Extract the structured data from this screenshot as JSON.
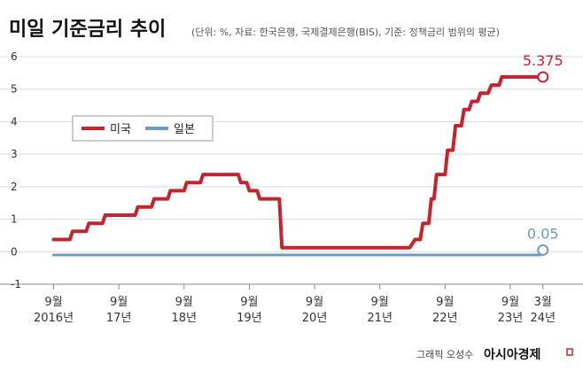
{
  "title": "미일 기준금리 추이",
  "subtitle": "(단위: %, 자료: 한국은행, 국제결제은행(BIS), 기준: 정책금리 범위의 평균)",
  "credit": {
    "author": "그래픽 오성수",
    "brand": "아시아경제"
  },
  "colors": {
    "us": "#c8232c",
    "japan": "#6b9ac4",
    "grid": "#d9d9d9",
    "axis": "#888888"
  },
  "chart_data": {
    "type": "line",
    "ylim": [
      -1,
      6
    ],
    "yticks": [
      "-1",
      "0",
      "1",
      "2",
      "3",
      "4",
      "5",
      "6"
    ],
    "xlim": [
      2016.5,
      2024.35
    ],
    "xticks": [
      {
        "line1": "9월",
        "line2": "2016년",
        "x": 2016.67
      },
      {
        "line1": "9월",
        "line2": "17년",
        "x": 2017.67
      },
      {
        "line1": "9월",
        "line2": "18년",
        "x": 2018.67
      },
      {
        "line1": "9월",
        "line2": "19년",
        "x": 2019.67
      },
      {
        "line1": "9월",
        "line2": "20년",
        "x": 2020.67
      },
      {
        "line1": "9월",
        "line2": "21년",
        "x": 2021.67
      },
      {
        "line1": "9월",
        "line2": "22년",
        "x": 2022.67
      },
      {
        "line1": "9월",
        "line2": "23년",
        "x": 2023.67
      },
      {
        "line1": "3월",
        "line2": "24년",
        "x": 2024.17
      }
    ],
    "legend": [
      {
        "name": "미국",
        "color": "#c8232c"
      },
      {
        "name": "일본",
        "color": "#6b9ac4"
      }
    ],
    "series": [
      {
        "name": "미국",
        "color": "#c8232c",
        "end_label": "5.375",
        "points": [
          [
            2016.67,
            0.375
          ],
          [
            2016.92,
            0.375
          ],
          [
            2016.96,
            0.625
          ],
          [
            2017.17,
            0.625
          ],
          [
            2017.21,
            0.875
          ],
          [
            2017.42,
            0.875
          ],
          [
            2017.46,
            1.125
          ],
          [
            2017.92,
            1.125
          ],
          [
            2017.96,
            1.375
          ],
          [
            2018.17,
            1.375
          ],
          [
            2018.21,
            1.625
          ],
          [
            2018.42,
            1.625
          ],
          [
            2018.46,
            1.875
          ],
          [
            2018.67,
            1.875
          ],
          [
            2018.71,
            2.125
          ],
          [
            2018.92,
            2.125
          ],
          [
            2018.96,
            2.375
          ],
          [
            2019.5,
            2.375
          ],
          [
            2019.54,
            2.125
          ],
          [
            2019.63,
            2.125
          ],
          [
            2019.67,
            1.875
          ],
          [
            2019.79,
            1.875
          ],
          [
            2019.83,
            1.625
          ],
          [
            2020.13,
            1.625
          ],
          [
            2020.17,
            0.125
          ],
          [
            2022.13,
            0.125
          ],
          [
            2022.21,
            0.375
          ],
          [
            2022.29,
            0.375
          ],
          [
            2022.33,
            0.875
          ],
          [
            2022.42,
            0.875
          ],
          [
            2022.46,
            1.625
          ],
          [
            2022.5,
            1.625
          ],
          [
            2022.54,
            2.375
          ],
          [
            2022.67,
            2.375
          ],
          [
            2022.71,
            3.125
          ],
          [
            2022.79,
            3.125
          ],
          [
            2022.83,
            3.875
          ],
          [
            2022.92,
            3.875
          ],
          [
            2022.96,
            4.375
          ],
          [
            2023.04,
            4.375
          ],
          [
            2023.08,
            4.625
          ],
          [
            2023.17,
            4.625
          ],
          [
            2023.21,
            4.875
          ],
          [
            2023.33,
            4.875
          ],
          [
            2023.38,
            5.125
          ],
          [
            2023.5,
            5.125
          ],
          [
            2023.54,
            5.375
          ],
          [
            2024.17,
            5.375
          ]
        ]
      },
      {
        "name": "일본",
        "color": "#6b9ac4",
        "end_label": "0.05",
        "points": [
          [
            2016.67,
            -0.1
          ],
          [
            2024.13,
            -0.1
          ],
          [
            2024.17,
            0.05
          ]
        ]
      }
    ]
  }
}
